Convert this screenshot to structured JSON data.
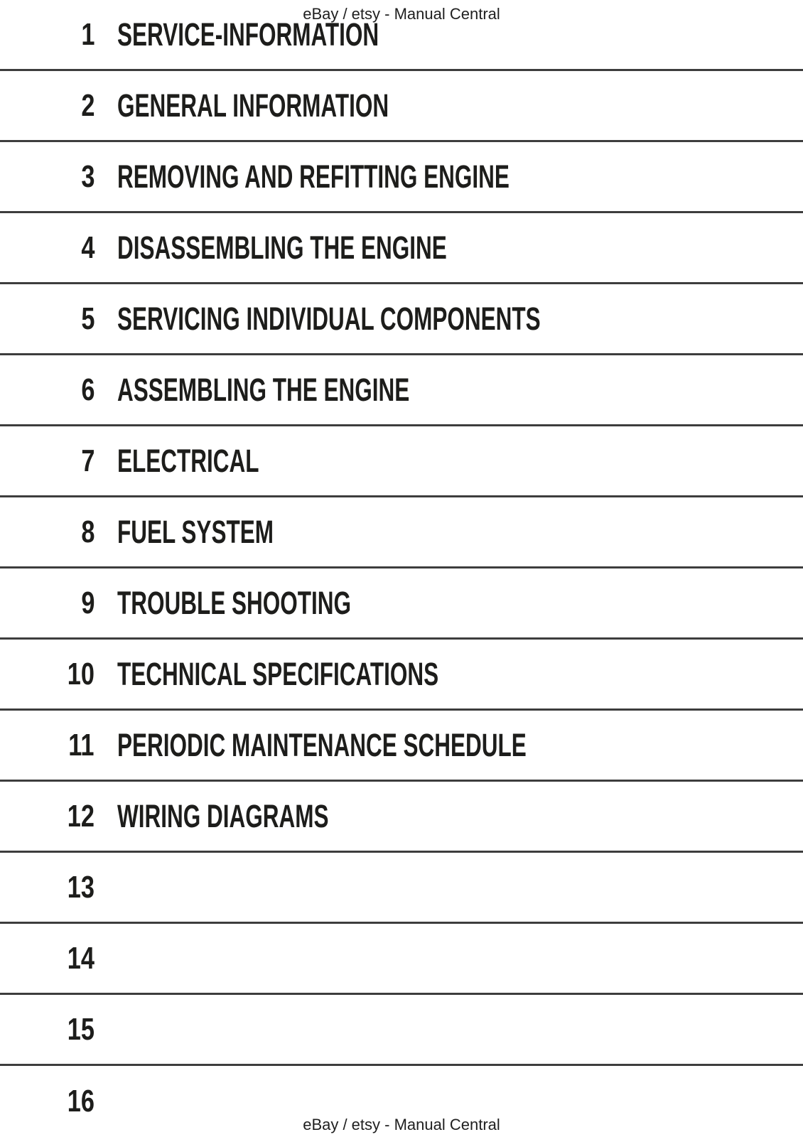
{
  "watermarks": {
    "top": "eBay / etsy - Manual Central",
    "bottom": "eBay / etsy - Manual Central"
  },
  "toc": {
    "items": [
      {
        "number": "1",
        "title": "SERVICE-INFORMATION"
      },
      {
        "number": "2",
        "title": "GENERAL INFORMATION"
      },
      {
        "number": "3",
        "title": "REMOVING AND REFITTING ENGINE"
      },
      {
        "number": "4",
        "title": "DISASSEMBLING THE ENGINE"
      },
      {
        "number": "5",
        "title": "SERVICING INDIVIDUAL COMPONENTS"
      },
      {
        "number": "6",
        "title": "ASSEMBLING THE ENGINE"
      },
      {
        "number": "7",
        "title": "ELECTRICAL"
      },
      {
        "number": "8",
        "title": "FUEL SYSTEM"
      },
      {
        "number": "9",
        "title": "TROUBLE SHOOTING"
      },
      {
        "number": "10",
        "title": "TECHNICAL SPECIFICATIONS"
      },
      {
        "number": "11",
        "title": "PERIODIC MAINTENANCE SCHEDULE"
      },
      {
        "number": "12",
        "title": "WIRING DIAGRAMS"
      },
      {
        "number": "13",
        "title": ""
      },
      {
        "number": "14",
        "title": ""
      },
      {
        "number": "15",
        "title": ""
      },
      {
        "number": "16",
        "title": ""
      }
    ]
  },
  "colors": {
    "text": "#1d1d1b",
    "divider": "#3d3d3d",
    "background": "#ffffff"
  }
}
